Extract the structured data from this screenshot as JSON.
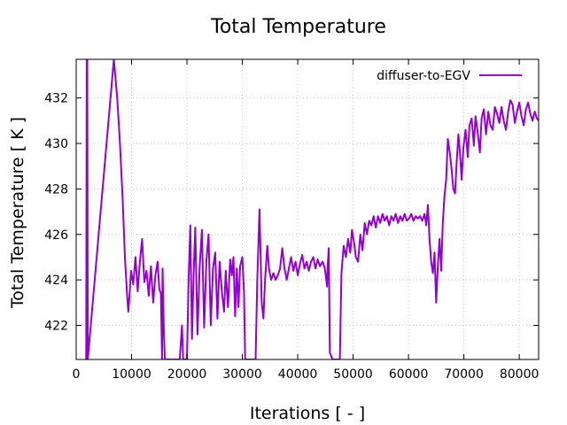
{
  "chart_data": {
    "type": "line",
    "title": "Total Temperature",
    "xlabel": "Iterations [ - ]",
    "ylabel": "Total Temperature [ K ]",
    "xlim": [
      0,
      83500
    ],
    "ylim": [
      420.5,
      433.7
    ],
    "xticks": [
      0,
      10000,
      20000,
      30000,
      40000,
      50000,
      60000,
      70000,
      80000
    ],
    "yticks": [
      422,
      424,
      426,
      428,
      430,
      432
    ],
    "grid": true,
    "legend_position": "top-right",
    "series": [
      {
        "name": "diffuser-to-EGV",
        "color": "#9400d3",
        "points": [
          [
            1800,
            420.5
          ],
          [
            1900,
            433.7
          ],
          [
            2000,
            433.7
          ],
          [
            2100,
            420.5
          ],
          [
            6800,
            433.7
          ],
          [
            7400,
            432.0
          ],
          [
            7900,
            430.0
          ],
          [
            8400,
            427.5
          ],
          [
            8800,
            425.0
          ],
          [
            9200,
            423.3
          ],
          [
            9400,
            422.6
          ],
          [
            9600,
            423.2
          ],
          [
            9900,
            424.4
          ],
          [
            10300,
            423.8
          ],
          [
            10700,
            425.0
          ],
          [
            11100,
            423.5
          ],
          [
            11500,
            424.8
          ],
          [
            11900,
            425.8
          ],
          [
            12300,
            423.9
          ],
          [
            12700,
            424.4
          ],
          [
            13100,
            423.3
          ],
          [
            13500,
            424.6
          ],
          [
            13900,
            423.0
          ],
          [
            14300,
            424.2
          ],
          [
            14700,
            424.8
          ],
          [
            15000,
            423.6
          ],
          [
            15300,
            423.4
          ],
          [
            15500,
            420.5
          ],
          [
            15600,
            424.5
          ],
          [
            15800,
            422.0
          ],
          [
            16000,
            420.5
          ],
          [
            18700,
            420.5
          ],
          [
            19100,
            422.0
          ],
          [
            19300,
            420.5
          ],
          [
            20000,
            420.5
          ],
          [
            20300,
            424.0
          ],
          [
            20600,
            426.4
          ],
          [
            20900,
            421.4
          ],
          [
            21200,
            424.2
          ],
          [
            21500,
            426.3
          ],
          [
            21900,
            421.6
          ],
          [
            22300,
            424.6
          ],
          [
            22700,
            426.2
          ],
          [
            23100,
            421.9
          ],
          [
            23500,
            424.8
          ],
          [
            23900,
            426.0
          ],
          [
            24300,
            422.0
          ],
          [
            24700,
            424.5
          ],
          [
            25100,
            425.2
          ],
          [
            25500,
            422.3
          ],
          [
            25900,
            424.8
          ],
          [
            26300,
            423.5
          ],
          [
            26700,
            422.6
          ],
          [
            27000,
            424.4
          ],
          [
            27400,
            422.8
          ],
          [
            27800,
            424.9
          ],
          [
            28100,
            424.2
          ],
          [
            28400,
            425.0
          ],
          [
            28700,
            422.4
          ],
          [
            29000,
            424.5
          ],
          [
            29300,
            422.8
          ],
          [
            29600,
            424.6
          ],
          [
            30000,
            425.0
          ],
          [
            30300,
            423.5
          ],
          [
            30500,
            420.5
          ],
          [
            32400,
            420.5
          ],
          [
            32700,
            424.0
          ],
          [
            33100,
            427.1
          ],
          [
            33500,
            423.0
          ],
          [
            33800,
            422.3
          ],
          [
            34100,
            424.0
          ],
          [
            34500,
            425.5
          ],
          [
            34800,
            424.5
          ],
          [
            35200,
            424.0
          ],
          [
            35600,
            424.3
          ],
          [
            36000,
            424.0
          ],
          [
            36400,
            424.2
          ],
          [
            36800,
            424.5
          ],
          [
            37200,
            425.4
          ],
          [
            37600,
            424.5
          ],
          [
            38000,
            424.0
          ],
          [
            38400,
            424.5
          ],
          [
            38800,
            425.0
          ],
          [
            39200,
            424.4
          ],
          [
            39600,
            424.8
          ],
          [
            40000,
            424.2
          ],
          [
            40400,
            424.7
          ],
          [
            40800,
            425.1
          ],
          [
            41200,
            424.5
          ],
          [
            41600,
            424.8
          ],
          [
            42000,
            424.4
          ],
          [
            42400,
            424.8
          ],
          [
            42800,
            425.0
          ],
          [
            43200,
            424.5
          ],
          [
            43600,
            424.9
          ],
          [
            44000,
            424.6
          ],
          [
            44500,
            424.8
          ],
          [
            44900,
            424.5
          ],
          [
            45300,
            423.7
          ],
          [
            45400,
            424.6
          ],
          [
            45600,
            425.4
          ],
          [
            45800,
            420.8
          ],
          [
            46300,
            420.5
          ],
          [
            47600,
            420.5
          ],
          [
            47900,
            424.3
          ],
          [
            48300,
            425.5
          ],
          [
            48700,
            425.0
          ],
          [
            49100,
            425.8
          ],
          [
            49500,
            425.2
          ],
          [
            49800,
            426.2
          ],
          [
            50200,
            425.6
          ],
          [
            50500,
            425.0
          ],
          [
            50900,
            424.8
          ],
          [
            51300,
            426.0
          ],
          [
            51700,
            425.3
          ],
          [
            52100,
            426.5
          ],
          [
            52500,
            426.0
          ],
          [
            52900,
            426.6
          ],
          [
            53300,
            426.4
          ],
          [
            53700,
            426.8
          ],
          [
            54100,
            426.3
          ],
          [
            54500,
            426.8
          ],
          [
            54900,
            426.5
          ],
          [
            55300,
            426.9
          ],
          [
            55700,
            426.6
          ],
          [
            56100,
            426.8
          ],
          [
            56500,
            426.4
          ],
          [
            56900,
            426.8
          ],
          [
            57300,
            426.6
          ],
          [
            57700,
            426.9
          ],
          [
            58100,
            426.5
          ],
          [
            58500,
            426.8
          ],
          [
            58900,
            426.6
          ],
          [
            59300,
            426.9
          ],
          [
            59700,
            426.6
          ],
          [
            60100,
            426.7
          ],
          [
            60500,
            426.9
          ],
          [
            60900,
            426.6
          ],
          [
            61300,
            426.8
          ],
          [
            61700,
            426.7
          ],
          [
            62100,
            426.8
          ],
          [
            62500,
            426.6
          ],
          [
            62900,
            426.9
          ],
          [
            63200,
            426.4
          ],
          [
            63500,
            427.3
          ],
          [
            63800,
            425.8
          ],
          [
            64100,
            424.8
          ],
          [
            64400,
            424.3
          ],
          [
            64700,
            425.2
          ],
          [
            65000,
            423.0
          ],
          [
            65300,
            424.6
          ],
          [
            65600,
            425.8
          ],
          [
            65900,
            424.4
          ],
          [
            66200,
            426.5
          ],
          [
            66500,
            427.7
          ],
          [
            66800,
            428.4
          ],
          [
            67100,
            430.2
          ],
          [
            67500,
            429.5
          ],
          [
            67800,
            428.8
          ],
          [
            68100,
            428.0
          ],
          [
            68400,
            427.8
          ],
          [
            68700,
            429.2
          ],
          [
            69000,
            430.4
          ],
          [
            69300,
            429.6
          ],
          [
            69600,
            428.4
          ],
          [
            69900,
            429.8
          ],
          [
            70300,
            430.6
          ],
          [
            70700,
            429.4
          ],
          [
            71000,
            430.8
          ],
          [
            71400,
            431.1
          ],
          [
            71800,
            429.9
          ],
          [
            72100,
            431.2
          ],
          [
            72500,
            430.5
          ],
          [
            72900,
            429.6
          ],
          [
            73200,
            431.1
          ],
          [
            73600,
            431.5
          ],
          [
            74000,
            430.4
          ],
          [
            74400,
            431.4
          ],
          [
            74800,
            430.8
          ],
          [
            75200,
            430.6
          ],
          [
            75600,
            431.6
          ],
          [
            76000,
            431.3
          ],
          [
            76400,
            430.9
          ],
          [
            76800,
            431.6
          ],
          [
            77200,
            431.0
          ],
          [
            77600,
            430.6
          ],
          [
            78000,
            431.4
          ],
          [
            78400,
            431.9
          ],
          [
            78800,
            431.7
          ],
          [
            79200,
            430.9
          ],
          [
            79600,
            431.4
          ],
          [
            80000,
            431.8
          ],
          [
            80400,
            431.2
          ],
          [
            80800,
            430.8
          ],
          [
            81200,
            431.5
          ],
          [
            81600,
            431.8
          ],
          [
            82000,
            431.3
          ],
          [
            82400,
            431.0
          ],
          [
            82800,
            431.4
          ],
          [
            83200,
            431.1
          ],
          [
            83500,
            431.0
          ]
        ]
      }
    ]
  }
}
